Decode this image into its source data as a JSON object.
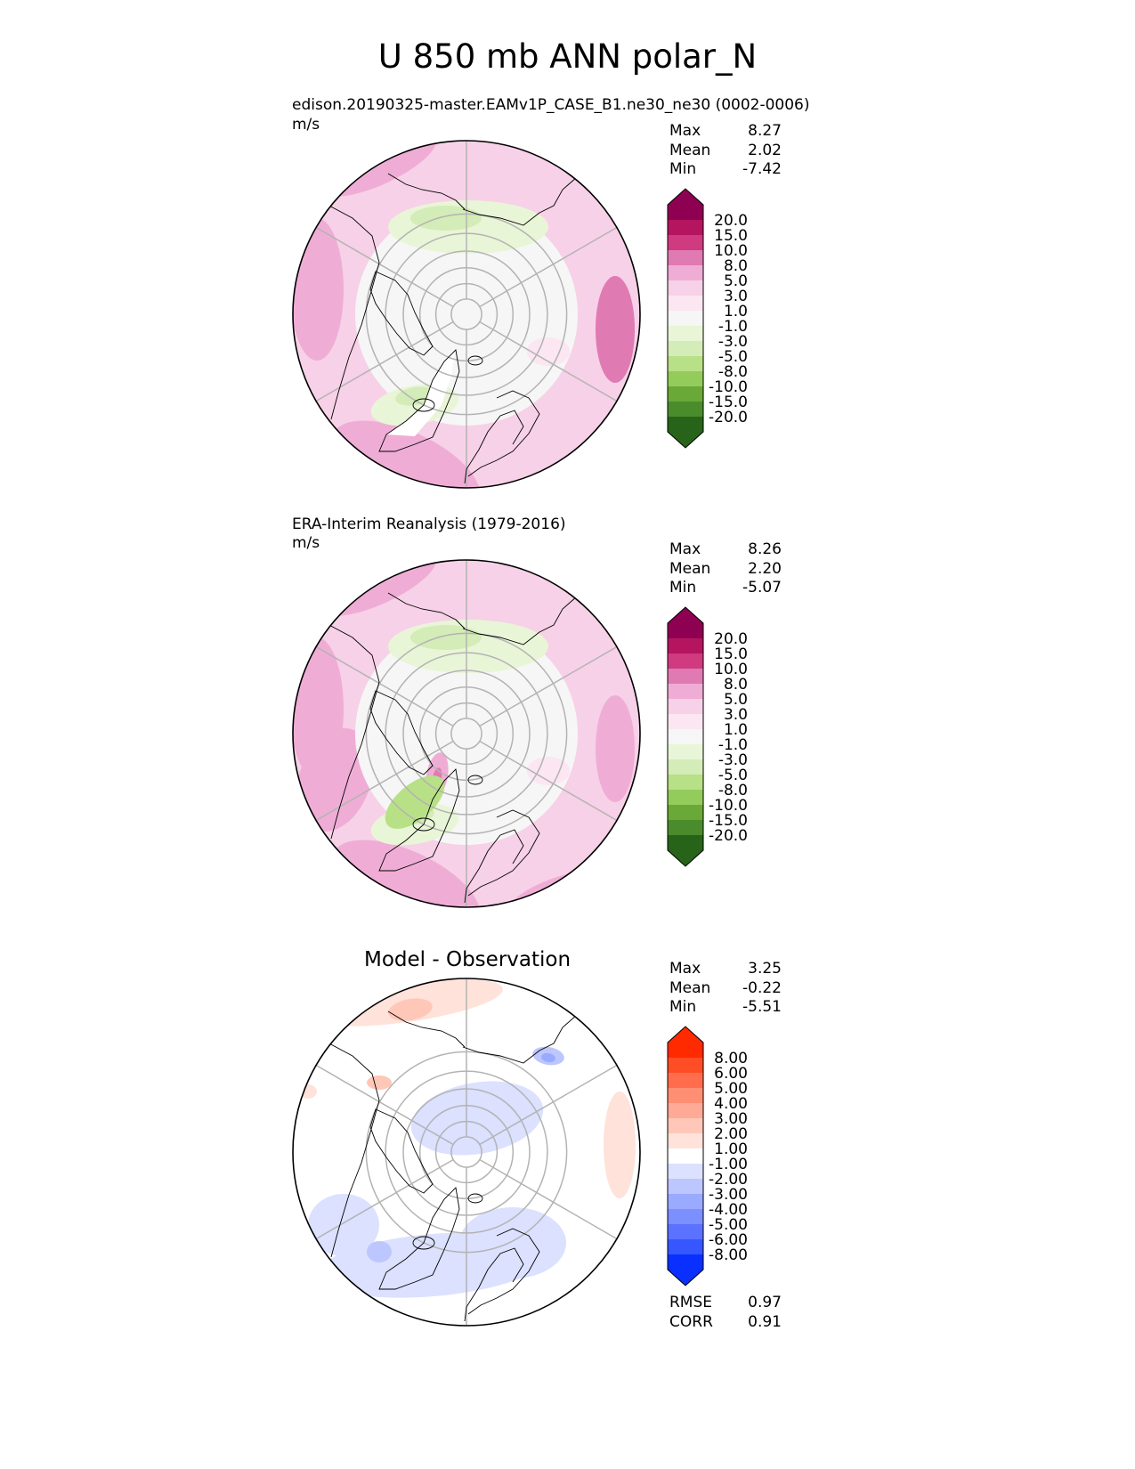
{
  "figure_title": "U 850 mb ANN polar_N",
  "chart_data": [
    {
      "type": "heatmap",
      "projection": "north-polar-stereographic",
      "title": "edison.20190325-master.EAMv1P_CASE_B1.ne30_ne30 (0002-0006)",
      "units": "m/s",
      "variable": "U 850 mb",
      "stats": {
        "max": "8.27",
        "mean": "2.02",
        "min": "-7.42"
      },
      "colorbar": {
        "levels": [
          "20.0",
          "15.0",
          "10.0",
          "8.0",
          "5.0",
          "3.0",
          "1.0",
          "-1.0",
          "-3.0",
          "-5.0",
          "-8.0",
          "-10.0",
          "-15.0",
          "-20.0"
        ],
        "colors": [
          "#8e0152",
          "#b5155e",
          "#d03a7f",
          "#e07ab3",
          "#efadd6",
          "#f7d1e7",
          "#fbe6f1",
          "#f6f6f6",
          "#e9f5d7",
          "#d4ecb7",
          "#b8e086",
          "#93cc5b",
          "#6aa938",
          "#4a8c2b",
          "#276419"
        ]
      }
    },
    {
      "type": "heatmap",
      "projection": "north-polar-stereographic",
      "title": "ERA-Interim Reanalysis (1979-2016)",
      "units": "m/s",
      "variable": "U 850 mb",
      "stats": {
        "max": "8.26",
        "mean": "2.20",
        "min": "-5.07"
      },
      "colorbar": {
        "levels": [
          "20.0",
          "15.0",
          "10.0",
          "8.0",
          "5.0",
          "3.0",
          "1.0",
          "-1.0",
          "-3.0",
          "-5.0",
          "-8.0",
          "-10.0",
          "-15.0",
          "-20.0"
        ],
        "colors": [
          "#8e0152",
          "#b5155e",
          "#d03a7f",
          "#e07ab3",
          "#efadd6",
          "#f7d1e7",
          "#fbe6f1",
          "#f6f6f6",
          "#e9f5d7",
          "#d4ecb7",
          "#b8e086",
          "#93cc5b",
          "#6aa938",
          "#4a8c2b",
          "#276419"
        ]
      }
    },
    {
      "type": "heatmap",
      "projection": "north-polar-stereographic",
      "title": "Model - Observation",
      "variable": "U 850 mb difference",
      "stats": {
        "max": "3.25",
        "mean": "-0.22",
        "min": "-5.51"
      },
      "metrics": {
        "rmse_label": "RMSE",
        "rmse": "0.97",
        "corr_label": "CORR",
        "corr": "0.91"
      },
      "colorbar": {
        "levels": [
          "8.00",
          "6.00",
          "5.00",
          "4.00",
          "3.00",
          "2.00",
          "1.00",
          "-1.00",
          "-2.00",
          "-3.00",
          "-4.00",
          "-5.00",
          "-6.00",
          "-8.00"
        ],
        "colors": [
          "#ff2a00",
          "#ff4d26",
          "#ff6d4d",
          "#ff8f73",
          "#ffaa96",
          "#ffc7b8",
          "#ffe2da",
          "#ffffff",
          "#dbe1ff",
          "#bcc7ff",
          "#9aaaff",
          "#7b8fff",
          "#5a72ff",
          "#3656ff",
          "#0a30ff"
        ]
      }
    }
  ],
  "stat_labels": {
    "max": "Max",
    "mean": "Mean",
    "min": "Min"
  }
}
